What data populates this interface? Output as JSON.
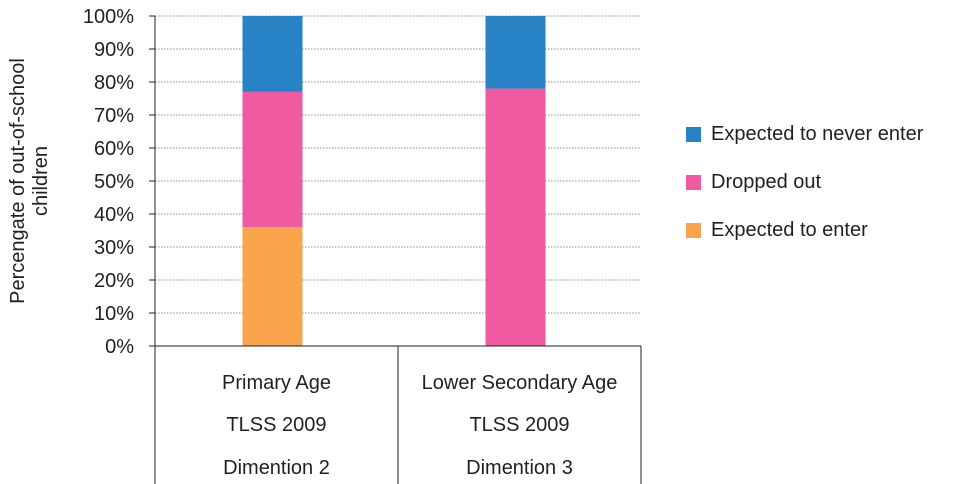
{
  "chart_data": {
    "type": "bar",
    "stacked": true,
    "ylabel": "Percengate of out-of-school children",
    "ylim": [
      0,
      100
    ],
    "yticks": [
      "0%",
      "10%",
      "20%",
      "30%",
      "40%",
      "50%",
      "60%",
      "70%",
      "80%",
      "90%",
      "100%"
    ],
    "grid": true,
    "legend_position": "right",
    "categories": [
      [
        "Primary Age",
        "TLSS 2009",
        "Dimention 2"
      ],
      [
        "Lower Secondary Age",
        "TLSS 2009",
        "Dimention 3"
      ]
    ],
    "series": [
      {
        "name": "Expected to enter",
        "color": "#f9a54b",
        "values": [
          36,
          0
        ]
      },
      {
        "name": "Dropped out",
        "color": "#ef5aa0",
        "values": [
          41,
          78
        ]
      },
      {
        "name": "Expected to never enter",
        "color": "#2783c6",
        "values": [
          23,
          22
        ]
      }
    ]
  }
}
